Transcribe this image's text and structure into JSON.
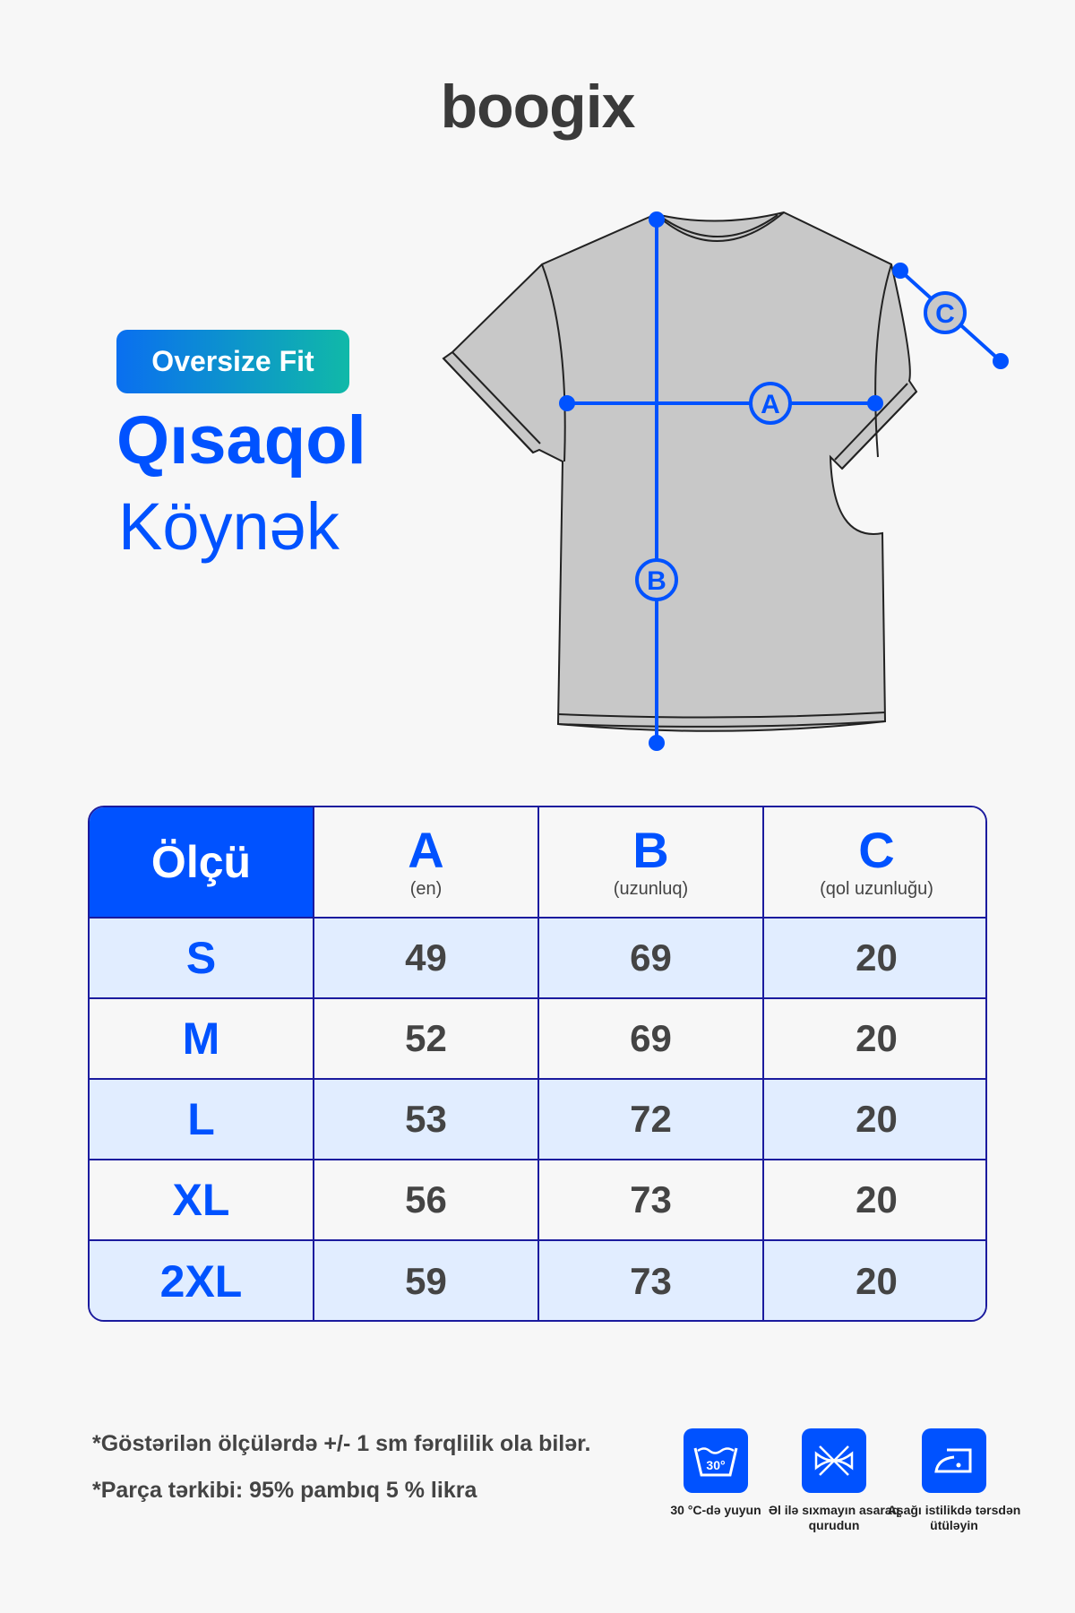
{
  "brand": "boogix",
  "badge": "Oversize Fit",
  "title_line1": "Qısaqol",
  "title_line2": "Köynək",
  "diagram": {
    "labels": [
      "A",
      "B",
      "C"
    ],
    "accent": "#0052ff"
  },
  "table": {
    "header": {
      "size": "Ölçü",
      "cols": [
        {
          "letter": "A",
          "desc": "(en)"
        },
        {
          "letter": "B",
          "desc": "(uzunluq)"
        },
        {
          "letter": "C",
          "desc": "(qol uzunluğu)"
        }
      ]
    },
    "rows": [
      {
        "size": "S",
        "a": "49",
        "b": "69",
        "c": "20"
      },
      {
        "size": "M",
        "a": "52",
        "b": "69",
        "c": "20"
      },
      {
        "size": "L",
        "a": "53",
        "b": "72",
        "c": "20"
      },
      {
        "size": "XL",
        "a": "56",
        "b": "73",
        "c": "20"
      },
      {
        "size": "2XL",
        "a": "59",
        "b": "73",
        "c": "20"
      }
    ]
  },
  "notes": [
    "*Göstərilən ölçülərdə +/- 1 sm fərqlilik ola bilər.",
    "*Parça tərkibi: 95% pambıq 5 % likra"
  ],
  "care": [
    {
      "icon": "wash-30-icon",
      "temp": "30°",
      "label": "30 °C-də yuyun"
    },
    {
      "icon": "no-wring-icon",
      "label": "Əl ilə sıxmayın asaraq qurudun"
    },
    {
      "icon": "iron-low-icon",
      "label": "Aşağı istilikdə tərsdən ütüləyin"
    }
  ]
}
